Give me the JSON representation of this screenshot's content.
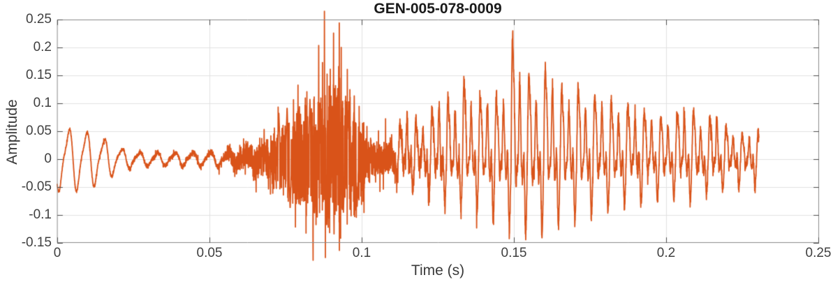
{
  "chart_data": {
    "type": "line",
    "title": "GEN-005-078-0009",
    "xlabel": "Time (s)",
    "ylabel": "Amplitude",
    "xlim": [
      0,
      0.25
    ],
    "ylim": [
      -0.15,
      0.25
    ],
    "xticks": [
      0,
      0.05,
      0.1,
      0.15,
      0.2,
      0.25
    ],
    "xtick_labels": [
      "0",
      "0.05",
      "0.1",
      "0.15",
      "0.2",
      "0.25"
    ],
    "yticks": [
      0.25,
      0.2,
      0.15,
      0.1,
      0.05,
      0,
      -0.05,
      -0.1,
      -0.15
    ],
    "ytick_labels": [
      "0.25",
      "0.2",
      "0.15",
      "0.1",
      "0.05",
      "0",
      "-0.05",
      "-0.1",
      "-0.15"
    ],
    "grid": true,
    "legend": null,
    "line_color": "#D95319",
    "grid_color": "#e2e2e2",
    "axis_box_color": "#8a8a8a",
    "tick_mark_color": "#4a4a4a",
    "tick_label_color": "#404040",
    "axis_label_color": "#3a3a3a",
    "title_color": "#1a1a1a",
    "key_points": {
      "global_max": [
        0.149,
        0.212
      ],
      "global_min": [
        0.0885,
        -0.122
      ],
      "signal_start_value": -0.04,
      "signal_end_s": 0.2305,
      "signal_end_value": 0.048
    },
    "segments": [
      {
        "t": [
          0,
          0.022
        ],
        "desc": "damped ~172 Hz oscillation, peaks ~+0.052 / -0.055"
      },
      {
        "t": [
          0.022,
          0.058
        ],
        "desc": "low-amplitude ripple ~±0.012"
      },
      {
        "t": [
          0.058,
          0.102
        ],
        "desc": "broadband noise burst growing to ~±0.1, extreme -0.122"
      },
      {
        "t": [
          0.102,
          0.112
        ],
        "desc": "brief lull ~±0.03"
      },
      {
        "t": [
          0.112,
          0.2305
        ],
        "desc": "voiced periodic section, max +0.212 at 0.149 s, slowly decaying to ~±0.05"
      }
    ],
    "signal": {
      "t_end": 0.2305,
      "sample_rate": 25000,
      "seed": 987123,
      "tone": {
        "freq": 172,
        "phase": -2.4,
        "harmonic2_amp": 0.25,
        "harmonic2_phase": 2.8,
        "envelope": [
          [
            0,
            0.05
          ],
          [
            0.004,
            0.052
          ],
          [
            0.0085,
            0.049
          ],
          [
            0.0145,
            0.038
          ],
          [
            0.0205,
            0.019
          ],
          [
            0.025,
            0.013
          ],
          [
            0.03,
            0.011
          ],
          [
            0.036,
            0.0105
          ],
          [
            0.042,
            0.0115
          ],
          [
            0.048,
            0.0105
          ],
          [
            0.054,
            0.012
          ],
          [
            0.059,
            0.01
          ],
          [
            0.064,
            0.007
          ],
          [
            0.072,
            0.004
          ],
          [
            0.082,
            0.002
          ],
          [
            0.1,
            0.001
          ],
          [
            0.11,
            0
          ],
          [
            0.2305,
            0
          ]
        ]
      },
      "noise": {
        "envelope": [
          [
            0,
            0.0015
          ],
          [
            0.02,
            0.002
          ],
          [
            0.04,
            0.003
          ],
          [
            0.054,
            0.004
          ],
          [
            0.058,
            0.011
          ],
          [
            0.062,
            0.015
          ],
          [
            0.066,
            0.022
          ],
          [
            0.07,
            0.032
          ],
          [
            0.074,
            0.042
          ],
          [
            0.078,
            0.052
          ],
          [
            0.081,
            0.06
          ],
          [
            0.084,
            0.07
          ],
          [
            0.087,
            0.08
          ],
          [
            0.09,
            0.088
          ],
          [
            0.0925,
            0.082
          ],
          [
            0.095,
            0.075
          ],
          [
            0.098,
            0.068
          ],
          [
            0.1,
            0.048
          ],
          [
            0.102,
            0.028
          ],
          [
            0.105,
            0.022
          ],
          [
            0.108,
            0.019
          ],
          [
            0.112,
            0.015
          ],
          [
            0.118,
            0.012
          ],
          [
            0.13,
            0.01
          ],
          [
            0.16,
            0.009
          ],
          [
            0.2,
            0.007
          ],
          [
            0.2305,
            0.006
          ]
        ],
        "spikes": [
          [
            0.0728,
            0.082
          ],
          [
            0.0755,
            0.095
          ],
          [
            0.0765,
            -0.09
          ],
          [
            0.0795,
            0.092
          ],
          [
            0.083,
            0.107
          ],
          [
            0.0845,
            -0.1
          ],
          [
            0.0862,
            0.1
          ],
          [
            0.0885,
            -0.122
          ],
          [
            0.091,
            -0.108
          ],
          [
            0.0925,
            0.096
          ],
          [
            0.094,
            -0.095
          ],
          [
            0.0955,
            0.09
          ],
          [
            0.0975,
            0.095
          ],
          [
            0.0985,
            -0.088
          ]
        ]
      },
      "voiced": {
        "f0": 187,
        "vibrato_rate": 8.3,
        "vibrato_depth": 0.35,
        "harmonics": [
          [
            1,
            0.45,
            0
          ],
          [
            2,
            0.72,
            1.1
          ],
          [
            3,
            0.42,
            0.6
          ],
          [
            4,
            0.3,
            2.3
          ],
          [
            5,
            0.18,
            4.1
          ],
          [
            7,
            0.1,
            0.9
          ]
        ],
        "pos_envelope": [
          [
            0.108,
            0
          ],
          [
            0.111,
            0.035
          ],
          [
            0.1155,
            0.106
          ],
          [
            0.119,
            0.065
          ],
          [
            0.1225,
            0.09
          ],
          [
            0.1265,
            0.148
          ],
          [
            0.1295,
            0.095
          ],
          [
            0.1335,
            0.151
          ],
          [
            0.137,
            0.1
          ],
          [
            0.1405,
            0.11
          ],
          [
            0.142,
            0.133
          ],
          [
            0.1448,
            0.1
          ],
          [
            0.1475,
            0.12
          ],
          [
            0.149,
            0.212
          ],
          [
            0.1515,
            0.165
          ],
          [
            0.1545,
            0.14
          ],
          [
            0.1575,
            0.12
          ],
          [
            0.1618,
            0.162
          ],
          [
            0.165,
            0.115
          ],
          [
            0.1685,
            0.11
          ],
          [
            0.1715,
            0.125
          ],
          [
            0.175,
            0.105
          ],
          [
            0.178,
            0.128
          ],
          [
            0.1815,
            0.11
          ],
          [
            0.185,
            0.1
          ],
          [
            0.189,
            0.105
          ],
          [
            0.1925,
            0.095
          ],
          [
            0.196,
            0.1
          ],
          [
            0.1995,
            0.075
          ],
          [
            0.2025,
            0.08
          ],
          [
            0.206,
            0.103
          ],
          [
            0.2095,
            0.085
          ],
          [
            0.2125,
            0.055
          ],
          [
            0.2162,
            0.093
          ],
          [
            0.2192,
            0.06
          ],
          [
            0.2225,
            0.042
          ],
          [
            0.2258,
            0.04
          ],
          [
            0.2285,
            0.038
          ],
          [
            0.2305,
            0.048
          ]
        ],
        "neg_envelope": [
          [
            0.108,
            0
          ],
          [
            0.112,
            0.04
          ],
          [
            0.116,
            0.065
          ],
          [
            0.12,
            0.08
          ],
          [
            0.125,
            0.09
          ],
          [
            0.13,
            0.1
          ],
          [
            0.135,
            0.098
          ],
          [
            0.14,
            0.102
          ],
          [
            0.145,
            0.108
          ],
          [
            0.15,
            0.118
          ],
          [
            0.154,
            0.125
          ],
          [
            0.158,
            0.128
          ],
          [
            0.162,
            0.118
          ],
          [
            0.166,
            0.112
          ],
          [
            0.17,
            0.108
          ],
          [
            0.174,
            0.106
          ],
          [
            0.178,
            0.103
          ],
          [
            0.183,
            0.098
          ],
          [
            0.188,
            0.092
          ],
          [
            0.193,
            0.088
          ],
          [
            0.198,
            0.082
          ],
          [
            0.203,
            0.078
          ],
          [
            0.207,
            0.082
          ],
          [
            0.211,
            0.07
          ],
          [
            0.2145,
            0.06
          ],
          [
            0.218,
            0.055
          ],
          [
            0.2215,
            0.048
          ],
          [
            0.225,
            0.05
          ],
          [
            0.2285,
            0.058
          ],
          [
            0.2305,
            0.025
          ]
        ]
      }
    }
  }
}
